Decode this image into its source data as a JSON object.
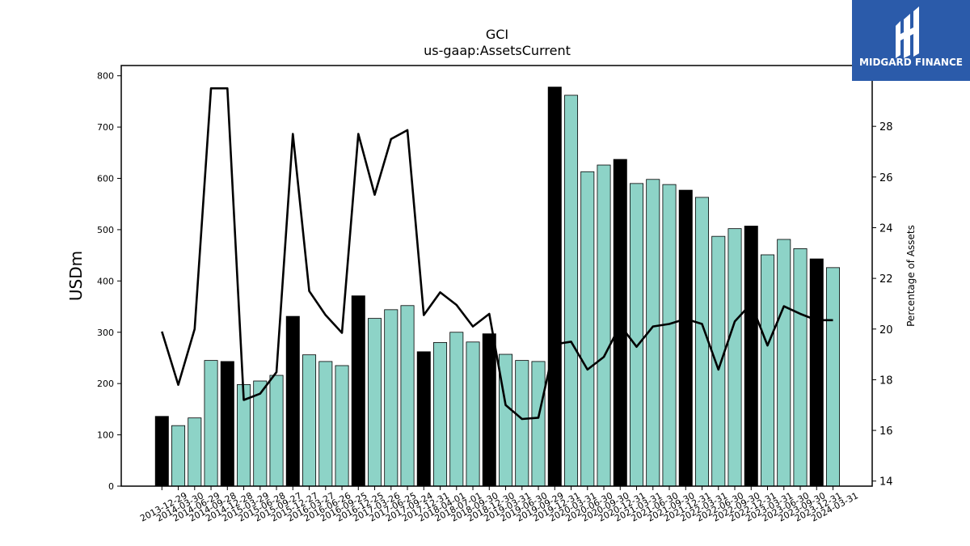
{
  "chart_data": {
    "type": "bar",
    "title": "GCI",
    "subtitle": "us-gaap:AssetsCurrent",
    "ylabel": "USDm",
    "y2label": "Percentage of Assets",
    "ylim": [
      0,
      820
    ],
    "y2lim": [
      13.8,
      30.4
    ],
    "yticks": [
      0,
      100,
      200,
      300,
      400,
      500,
      600,
      700,
      800
    ],
    "y2ticks": [
      14,
      16,
      18,
      20,
      22,
      24,
      26,
      28
    ],
    "categories": [
      "2013-12-29",
      "2014-03-30",
      "2014-06-29",
      "2014-09-28",
      "2014-12-28",
      "2015-03-29",
      "2015-06-28",
      "2015-09-27",
      "2015-12-27",
      "2016-03-27",
      "2016-06-26",
      "2016-09-25",
      "2016-12-25",
      "2017-03-26",
      "2017-06-25",
      "2017-09-24",
      "2017-12-31",
      "2018-04-01",
      "2018-07-01",
      "2018-09-30",
      "2018-12-30",
      "2019-03-31",
      "2019-06-30",
      "2019-09-29",
      "2019-12-31",
      "2020-03-31",
      "2020-06-30",
      "2020-09-30",
      "2020-12-31",
      "2021-03-31",
      "2021-06-30",
      "2021-09-30",
      "2021-12-31",
      "2022-03-31",
      "2022-06-30",
      "2022-09-30",
      "2022-12-31",
      "2023-03-31",
      "2023-06-30",
      "2023-09-30",
      "2023-12-31",
      "2024-03-31"
    ],
    "series": [
      {
        "kind": "bar",
        "values": [
          136,
          118,
          133,
          245,
          243,
          198,
          205,
          216,
          331,
          256,
          243,
          235,
          371,
          327,
          344,
          352,
          262,
          280,
          300,
          281,
          297,
          257,
          245,
          243,
          778,
          762,
          613,
          626,
          637,
          590,
          598,
          588,
          577,
          563,
          487,
          502,
          507,
          451,
          481,
          463,
          443,
          426
        ],
        "highlight": [
          true,
          false,
          false,
          false,
          true,
          false,
          false,
          false,
          true,
          false,
          false,
          false,
          true,
          false,
          false,
          false,
          true,
          false,
          false,
          false,
          true,
          false,
          false,
          false,
          true,
          false,
          false,
          false,
          true,
          false,
          false,
          false,
          true,
          false,
          false,
          false,
          true,
          false,
          false,
          false,
          true,
          false
        ]
      },
      {
        "kind": "line",
        "axis": "right",
        "values": [
          19.9,
          17.8,
          20.0,
          29.5,
          29.5,
          17.2,
          17.45,
          18.3,
          27.7,
          21.5,
          20.55,
          19.85,
          27.7,
          25.3,
          27.5,
          27.85,
          20.55,
          21.45,
          20.95,
          20.1,
          20.6,
          17.0,
          16.45,
          16.5,
          19.4,
          19.5,
          18.4,
          18.9,
          20.15,
          19.3,
          20.1,
          20.2,
          20.4,
          20.2,
          18.4,
          20.3,
          21.0,
          19.35,
          20.9,
          20.6,
          20.35,
          20.35
        ]
      }
    ],
    "colors": {
      "bar": "#8dd3c7",
      "highlight": "#000000",
      "line": "#000000",
      "edge": "#000000"
    }
  },
  "logo": {
    "text": "MIDGARD FINANCE",
    "background": "#2b5baa"
  }
}
